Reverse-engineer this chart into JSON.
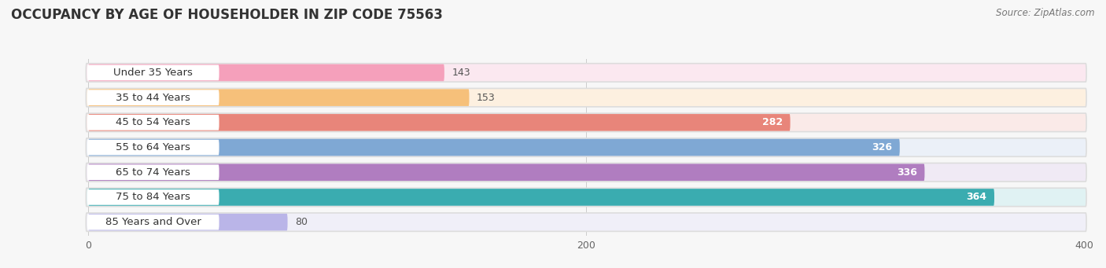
{
  "title": "OCCUPANCY BY AGE OF HOUSEHOLDER IN ZIP CODE 75563",
  "source": "Source: ZipAtlas.com",
  "categories": [
    "Under 35 Years",
    "35 to 44 Years",
    "45 to 54 Years",
    "55 to 64 Years",
    "65 to 74 Years",
    "75 to 84 Years",
    "85 Years and Over"
  ],
  "values": [
    143,
    153,
    282,
    326,
    336,
    364,
    80
  ],
  "bar_colors": [
    "#F5A0BB",
    "#F6C07A",
    "#E8857A",
    "#7FA8D4",
    "#B07DC0",
    "#3AACB0",
    "#BAB5E8"
  ],
  "bar_bg_colors": [
    "#FBE8F0",
    "#FDF0E0",
    "#FAEAE8",
    "#EBF0F8",
    "#F0EAF5",
    "#E0F2F3",
    "#F0EFF8"
  ],
  "row_bg_color": "#efefef",
  "xlim": [
    0,
    400
  ],
  "xticks": [
    0,
    200,
    400
  ],
  "background_color": "#f7f7f7",
  "title_fontsize": 12,
  "label_fontsize": 9.5,
  "value_fontsize": 9,
  "source_fontsize": 8.5
}
